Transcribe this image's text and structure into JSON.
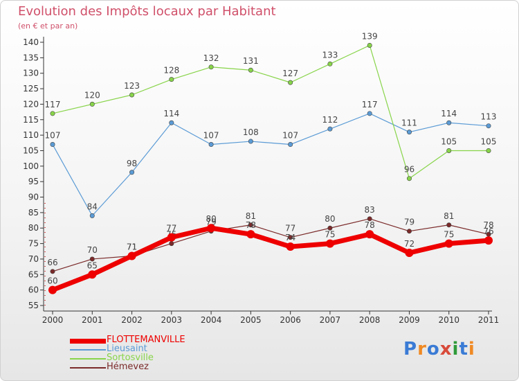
{
  "chart_data": {
    "type": "line",
    "title": "Evolution des Impôts locaux par Habitant",
    "subtitle": "(en € et par an)",
    "categories": [
      "2000",
      "2001",
      "2002",
      "2003",
      "2004",
      "2005",
      "2006",
      "2007",
      "2008",
      "2009",
      "2010",
      "2011"
    ],
    "ylim": [
      55,
      140
    ],
    "yticks": [
      55,
      60,
      65,
      70,
      75,
      80,
      85,
      90,
      95,
      100,
      105,
      110,
      115,
      120,
      125,
      130,
      135,
      140
    ],
    "grid": false,
    "legend_position": "bottom-left",
    "series": [
      {
        "name": "FLOTTEMANVILLE",
        "color": "#ee0000",
        "values": [
          60,
          65,
          71,
          77,
          80,
          78,
          74,
          75,
          78,
          72,
          75,
          76
        ]
      },
      {
        "name": "Lieusaint",
        "color": "#5b9bd5",
        "values": [
          107,
          84,
          98,
          114,
          107,
          108,
          107,
          112,
          117,
          111,
          114,
          113
        ]
      },
      {
        "name": "Sortosville",
        "color": "#88d44a",
        "values": [
          117,
          120,
          123,
          128,
          132,
          131,
          127,
          133,
          139,
          96,
          105,
          105
        ]
      },
      {
        "name": "Hémevez",
        "color": "#7b2a2a",
        "values": [
          66,
          70,
          71,
          75,
          79,
          81,
          77,
          80,
          83,
          79,
          81,
          78
        ]
      }
    ]
  },
  "logo": {
    "text": "Proxiti",
    "letter_colors": [
      "#3a7bd5",
      "#f08a24",
      "#3a7bd5",
      "#d84a3a",
      "#2f9a3a",
      "#3a7bd5",
      "#f08a24"
    ]
  }
}
